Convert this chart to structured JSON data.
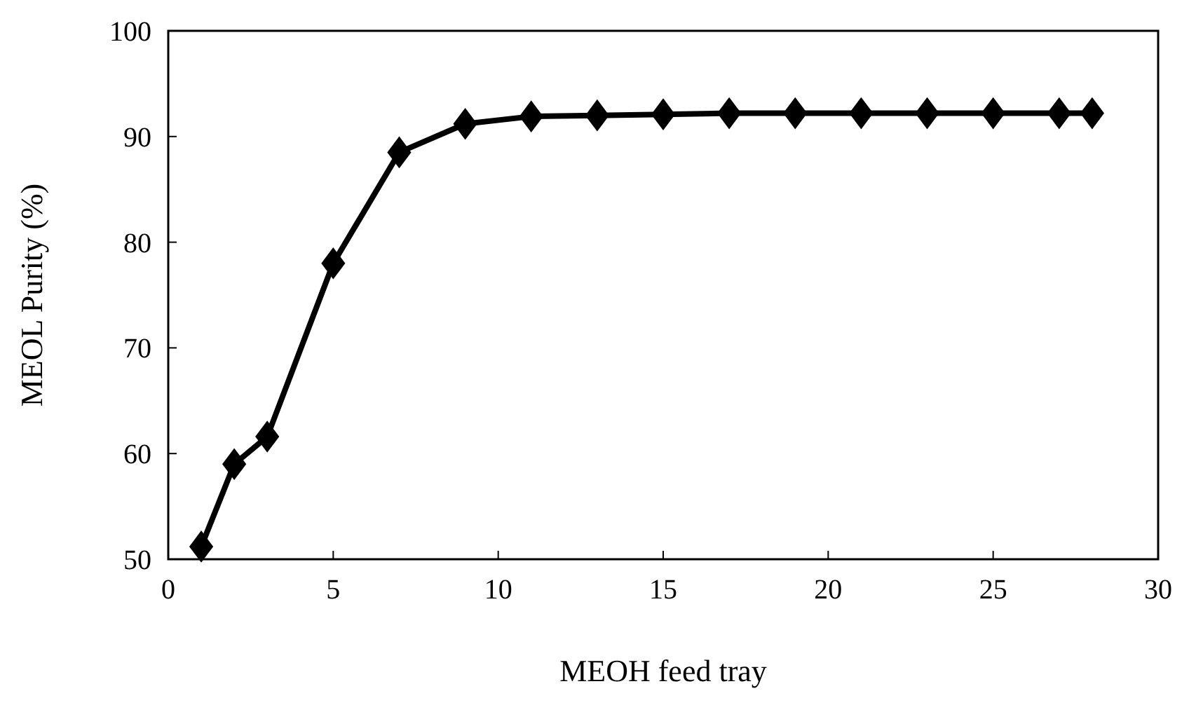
{
  "chart_data": {
    "type": "line",
    "xlabel": "MEOH feed tray",
    "ylabel": "MEOL Purity (%)",
    "x": [
      1,
      2,
      3,
      5,
      7,
      9,
      11,
      13,
      15,
      17,
      19,
      21,
      23,
      25,
      27,
      28
    ],
    "series": [
      {
        "color": "#000000",
        "values": [
          51.2,
          59.0,
          61.6,
          78.0,
          88.5,
          91.2,
          91.9,
          92.0,
          92.1,
          92.2,
          92.2,
          92.2,
          92.2,
          92.2,
          92.2,
          92.2
        ]
      }
    ],
    "xlim": [
      0,
      30
    ],
    "xticks": [
      0,
      5,
      10,
      15,
      20,
      25,
      30
    ],
    "ylim": [
      50,
      100
    ],
    "yticks": [
      50,
      60,
      70,
      80,
      90,
      100
    ],
    "marker": "diamond",
    "line_style": "solid",
    "grid": false
  }
}
